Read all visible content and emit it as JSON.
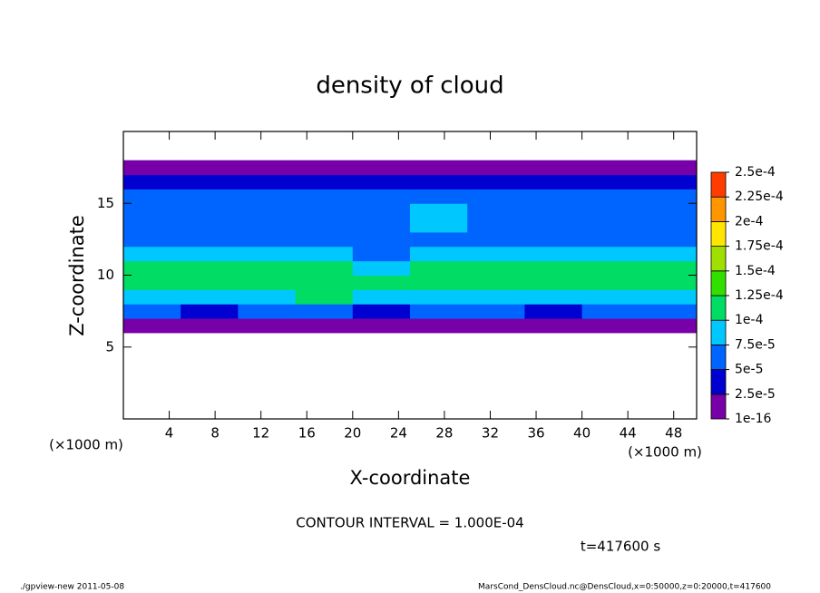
{
  "chart_data": {
    "type": "heatmap",
    "title": "density of cloud",
    "xlabel": "X-coordinate",
    "ylabel": "Z-coordinate",
    "x_unit": "(×1000 m)",
    "z_unit": "(×1000 m)",
    "contour_note": "CONTOUR INTERVAL = 1.000E-04",
    "time_label": "t=417600 s",
    "footer_left": "./gpview-new  2011-05-08",
    "footer_right": "MarsCond_DensCloud.nc@DensCloud,x=0:50000,z=0:20000,t=417600",
    "xlim": [
      0,
      50
    ],
    "ylim": [
      0,
      20
    ],
    "xticks": [
      4,
      8,
      12,
      16,
      20,
      24,
      28,
      32,
      36,
      40,
      44,
      48
    ],
    "yticks": [
      5,
      10,
      15
    ],
    "x_edges": [
      0,
      5,
      10,
      15,
      20,
      25,
      30,
      35,
      40,
      45,
      50
    ],
    "z_edges": [
      0,
      1,
      2,
      3,
      4,
      5,
      6,
      7,
      8,
      9,
      10,
      11,
      12,
      13,
      14,
      15,
      16,
      17,
      18,
      19,
      20
    ],
    "levels": [
      {
        "value": 1e-16,
        "label": "1e-16"
      },
      {
        "value": 2.5e-05,
        "label": "2.5e-5"
      },
      {
        "value": 5e-05,
        "label": "5e-5"
      },
      {
        "value": 7.5e-05,
        "label": "7.5e-5"
      },
      {
        "value": 0.0001,
        "label": "1e-4"
      },
      {
        "value": 0.000125,
        "label": "1.25e-4"
      },
      {
        "value": 0.00015,
        "label": "1.5e-4"
      },
      {
        "value": 0.000175,
        "label": "1.75e-4"
      },
      {
        "value": 0.0002,
        "label": "2e-4"
      },
      {
        "value": 0.000225,
        "label": "2.25e-4"
      },
      {
        "value": 0.00025,
        "label": "2.5e-4"
      }
    ],
    "colors": [
      "#7800a8",
      "#0000d0",
      "#0064ff",
      "#00c8ff",
      "#00dc64",
      "#32e000",
      "#a0e000",
      "#ffe600",
      "#ff9600",
      "#ff3c00"
    ],
    "values": [
      [
        null,
        null,
        null,
        null,
        null,
        null,
        null,
        null,
        null,
        null
      ],
      [
        null,
        null,
        null,
        null,
        null,
        null,
        null,
        null,
        null,
        null
      ],
      [
        null,
        null,
        null,
        null,
        null,
        null,
        null,
        null,
        null,
        null
      ],
      [
        null,
        null,
        null,
        null,
        null,
        null,
        null,
        null,
        null,
        null
      ],
      [
        null,
        null,
        null,
        null,
        null,
        null,
        null,
        null,
        null,
        null
      ],
      [
        null,
        null,
        null,
        null,
        null,
        null,
        null,
        null,
        null,
        null
      ],
      [
        2e-05,
        2e-05,
        2e-05,
        2e-05,
        2e-05,
        2e-05,
        2e-05,
        2e-05,
        2e-05,
        2e-05
      ],
      [
        6e-05,
        4e-05,
        6e-05,
        6e-05,
        4e-05,
        6e-05,
        6e-05,
        4e-05,
        6e-05,
        6e-05
      ],
      [
        9e-05,
        8.5e-05,
        9e-05,
        0.000105,
        8.5e-05,
        9e-05,
        8.5e-05,
        9e-05,
        8.5e-05,
        9e-05
      ],
      [
        0.000115,
        0.00011,
        0.000115,
        0.00011,
        0.000105,
        0.00011,
        0.00011,
        0.000115,
        0.00011,
        0.00011
      ],
      [
        0.000105,
        0.00011,
        0.000105,
        0.000105,
        9e-05,
        0.000105,
        0.00011,
        0.000105,
        0.00011,
        0.000105
      ],
      [
        8e-05,
        8e-05,
        8e-05,
        8e-05,
        7e-05,
        7.5e-05,
        8e-05,
        8.5e-05,
        8.5e-05,
        8e-05
      ],
      [
        6.5e-05,
        6.5e-05,
        6.5e-05,
        6e-05,
        6.5e-05,
        7e-05,
        6.5e-05,
        6.5e-05,
        6.5e-05,
        6.5e-05
      ],
      [
        6e-05,
        6e-05,
        5.5e-05,
        6e-05,
        6e-05,
        8e-05,
        6e-05,
        5.5e-05,
        6e-05,
        6e-05
      ],
      [
        5.5e-05,
        5.5e-05,
        5.5e-05,
        5.5e-05,
        6e-05,
        7.5e-05,
        5.5e-05,
        5.5e-05,
        5.5e-05,
        5.5e-05
      ],
      [
        5e-05,
        5e-05,
        5e-05,
        5e-05,
        5e-05,
        6e-05,
        5e-05,
        5e-05,
        5e-05,
        5e-05
      ],
      [
        3e-05,
        3e-05,
        3e-05,
        3e-05,
        3e-05,
        3e-05,
        3e-05,
        3e-05,
        3e-05,
        3e-05
      ],
      [
        1e-05,
        1e-05,
        1e-05,
        1e-05,
        1e-05,
        1e-05,
        1e-05,
        1e-05,
        1e-05,
        1e-05
      ],
      [
        null,
        null,
        null,
        null,
        null,
        null,
        null,
        null,
        null,
        null
      ],
      [
        null,
        null,
        null,
        null,
        null,
        null,
        null,
        null,
        null,
        null
      ]
    ]
  }
}
